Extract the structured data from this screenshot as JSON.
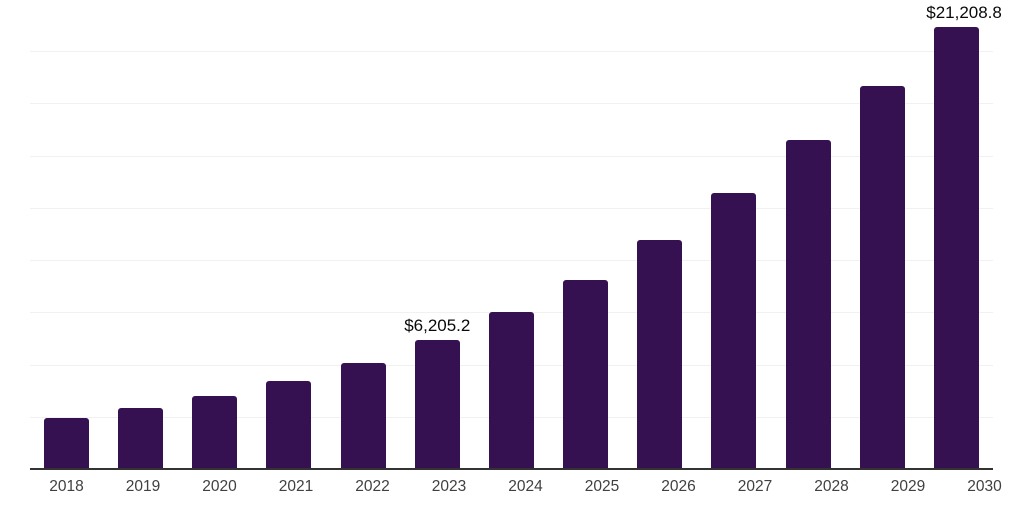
{
  "chart_data": {
    "type": "bar",
    "title": "",
    "xlabel": "",
    "ylabel": "",
    "categories": [
      "2018",
      "2019",
      "2020",
      "2021",
      "2022",
      "2023",
      "2024",
      "2025",
      "2026",
      "2027",
      "2028",
      "2029",
      "2030"
    ],
    "values": [
      2500,
      2950,
      3520,
      4240,
      5140,
      6205.2,
      7550,
      9080,
      11000,
      13250,
      15780,
      18400,
      21208.8
    ],
    "bar_labels": {
      "2023": "$6,205.2",
      "2030": "$21,208.8"
    },
    "ylim": [
      0,
      22500
    ],
    "gridline_step": 2500,
    "grid": "horizontal",
    "y_tick_labels": "none",
    "legend": "none",
    "colors": {
      "bar": "#351151",
      "gridline": "#f1f1f1",
      "axis_line": "#333333",
      "x_tick_label": "#404040",
      "value_label": "#0a0a0a",
      "background": "#ffffff"
    }
  }
}
